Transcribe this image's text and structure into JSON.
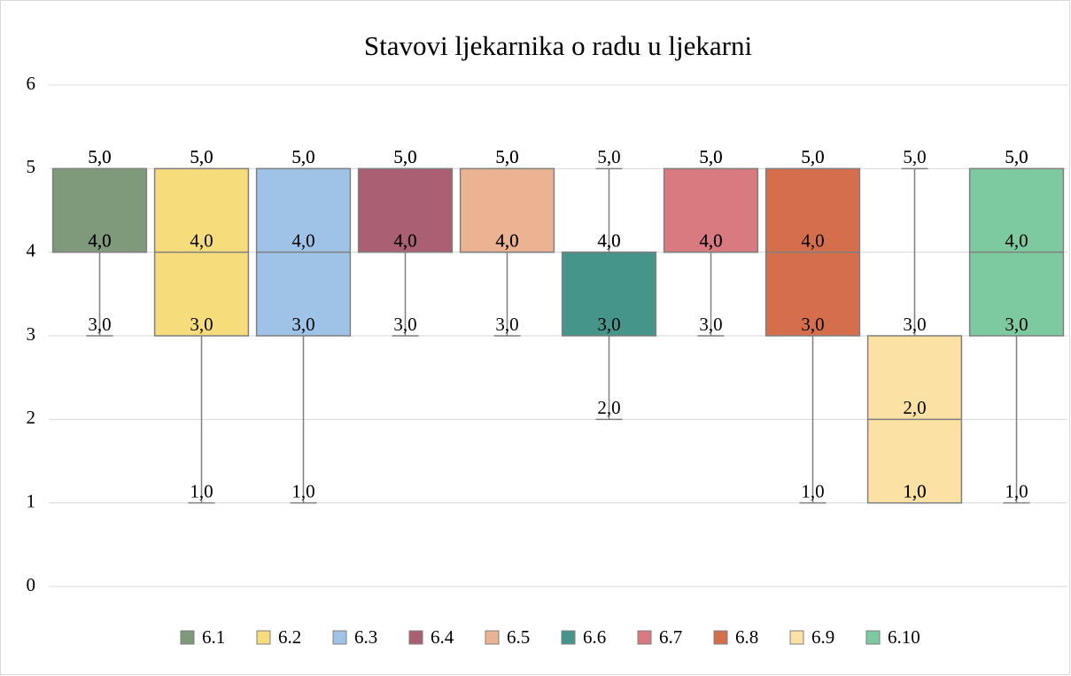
{
  "chart_data": {
    "type": "box",
    "title": "Stavovi ljekarnika o radu u ljekarni",
    "ylim": [
      0,
      6
    ],
    "yticks": [
      0,
      1,
      2,
      3,
      4,
      5,
      6
    ],
    "grid": true,
    "legend": "bottom",
    "series": [
      {
        "name": "6.1",
        "color": "#7f9a7b",
        "values": [
          3,
          4,
          4,
          5,
          5
        ],
        "value_labels": [
          "3,0",
          "4,0",
          "4,0",
          "5,0",
          "5,0"
        ]
      },
      {
        "name": "6.2",
        "color": "#f7dc7c",
        "values": [
          1,
          3,
          4,
          5,
          5
        ],
        "value_labels": [
          "1,0",
          "3,0",
          "4,0",
          "5,0",
          "5,0"
        ]
      },
      {
        "name": "6.3",
        "color": "#9fc3e7",
        "values": [
          1,
          3,
          4,
          5,
          5
        ],
        "value_labels": [
          "1,0",
          "3,0",
          "4,0",
          "5,0",
          "5,0"
        ]
      },
      {
        "name": "6.4",
        "color": "#ab5f73",
        "values": [
          3,
          4,
          4,
          5,
          5
        ],
        "value_labels": [
          "3,0",
          "4,0",
          "4,0",
          "5,0",
          "5,0"
        ]
      },
      {
        "name": "6.5",
        "color": "#ecb392",
        "values": [
          3,
          4,
          4,
          5,
          5
        ],
        "value_labels": [
          "3,0",
          "4,0",
          "4,0",
          "5,0",
          "5,0"
        ]
      },
      {
        "name": "6.6",
        "color": "#45958a",
        "values": [
          2,
          3,
          4,
          4,
          5
        ],
        "value_labels": [
          "2,0",
          "3,0",
          "4,0",
          "4,0",
          "5,0"
        ]
      },
      {
        "name": "6.7",
        "color": "#d87a80",
        "values": [
          3,
          4,
          4,
          5,
          5
        ],
        "value_labels": [
          "3,0",
          "4,0",
          "4,0",
          "5,0",
          "5,0"
        ]
      },
      {
        "name": "6.8",
        "color": "#d46e4d",
        "values": [
          1,
          3,
          4,
          5,
          5
        ],
        "value_labels": [
          "1,0",
          "3,0",
          "4,0",
          "5,0",
          "5,0"
        ]
      },
      {
        "name": "6.9",
        "color": "#fbe1a3",
        "values": [
          1,
          1,
          2,
          3,
          5
        ],
        "value_labels": [
          "1,0",
          "1,0",
          "2,0",
          "3,0",
          "5,0"
        ]
      },
      {
        "name": "6.10",
        "color": "#7ecaa0",
        "values": [
          1,
          3,
          4,
          5,
          5
        ],
        "value_labels": [
          "1,0",
          "3,0",
          "4,0",
          "5,0",
          "5,0"
        ]
      }
    ]
  }
}
